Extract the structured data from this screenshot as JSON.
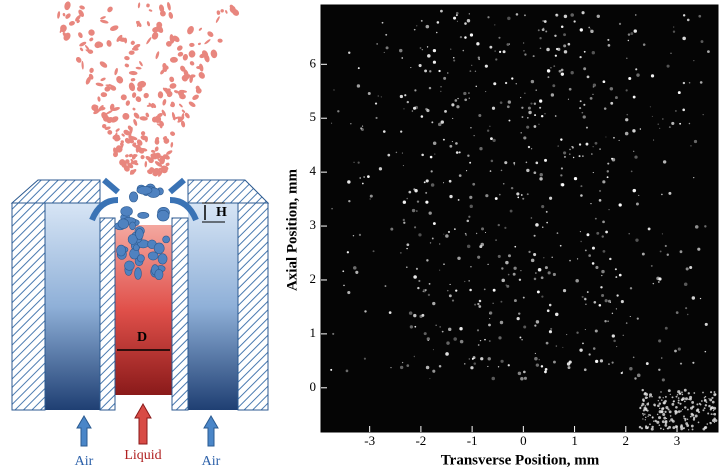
{
  "diagram": {
    "gap_label": "H",
    "diameter_label": "D",
    "inlets": [
      "Air",
      "Liquid",
      "Air"
    ]
  },
  "chart_data": {
    "type": "image",
    "xlabel": "Transverse Position, mm",
    "ylabel": "Axial Position, mm",
    "xlim": [
      -3.95,
      3.8
    ],
    "ylim": [
      -0.82,
      7.1
    ],
    "xticks": [
      -3,
      -2,
      -1,
      0,
      1,
      2,
      3
    ],
    "yticks": [
      0,
      1,
      2,
      3,
      4,
      5,
      6
    ]
  }
}
